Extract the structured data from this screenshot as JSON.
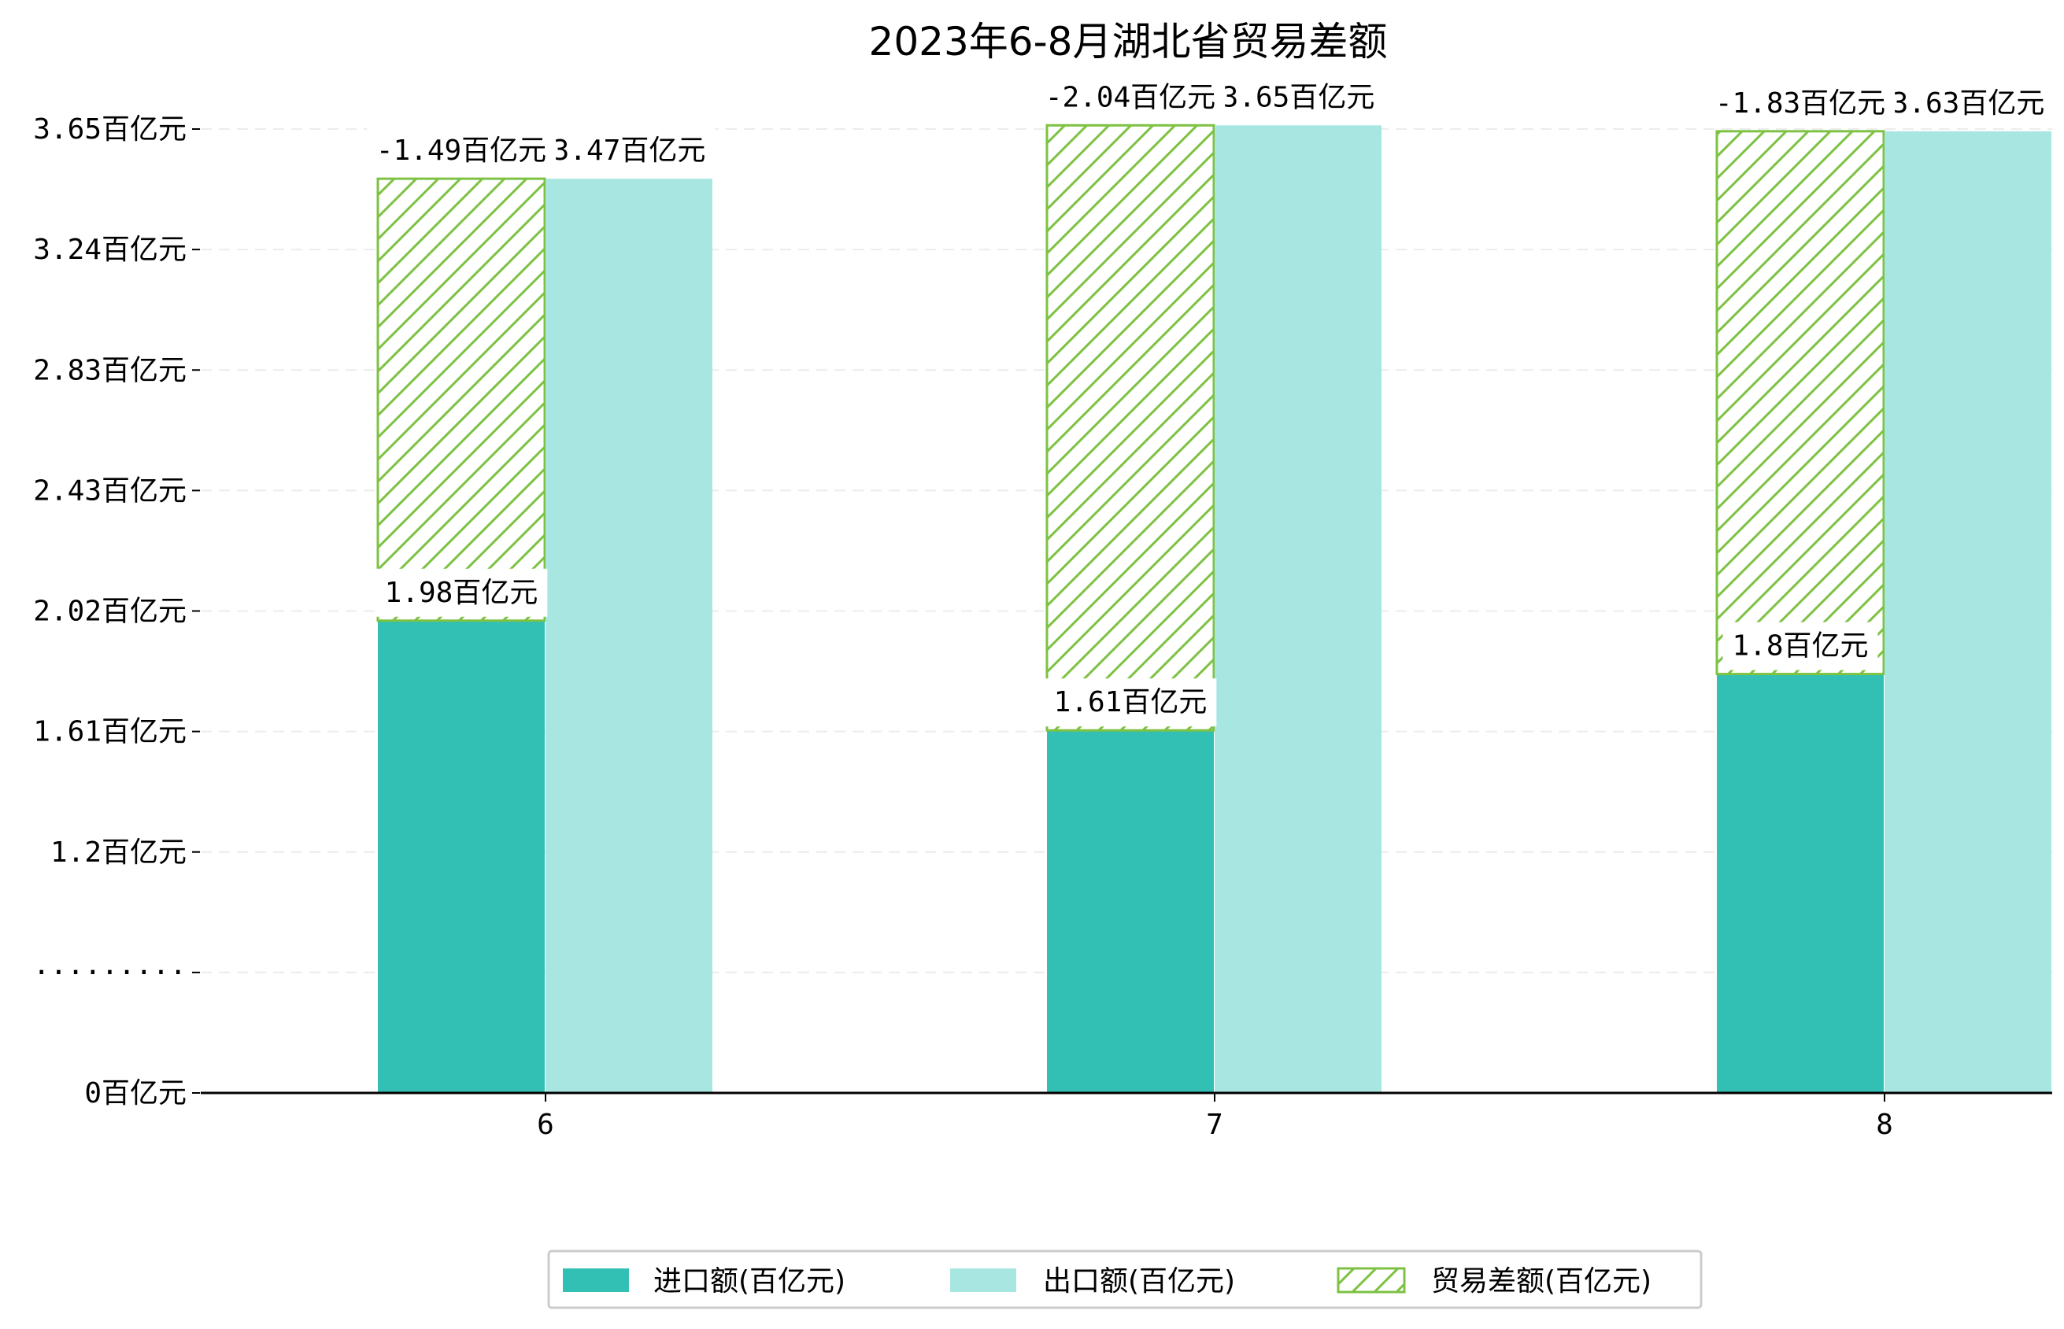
{
  "chart_data": {
    "type": "bar",
    "title": "2023年6-8月湖北省贸易差额",
    "xlabel": "",
    "ylabel": "",
    "categories": [
      "6",
      "7",
      "8"
    ],
    "y_ticks": [
      "0百亿元",
      "·········",
      "1.2百亿元",
      "1.61百亿元",
      "2.02百亿元",
      "2.43百亿元",
      "2.83百亿元",
      "3.24百亿元",
      "3.65百亿元"
    ],
    "y_axis_break": true,
    "grid": "horizontal dashed",
    "legend_position": "bottom-center",
    "series": [
      {
        "name": "进口额(百亿元)",
        "values": [
          1.98,
          1.61,
          1.8
        ],
        "labels": [
          "1.98百亿元",
          "1.61百亿元",
          "1.8百亿元"
        ],
        "color": "#31c0b3",
        "style": "solid"
      },
      {
        "name": "出口额(百亿元)",
        "values": [
          3.47,
          3.65,
          3.63
        ],
        "labels": [
          "47百亿元",
          "65百亿元",
          "63百亿元"
        ],
        "color": "#a8e6e1",
        "style": "solid"
      },
      {
        "name": "贸易差额(百亿元)",
        "values": [
          -1.49,
          -2.04,
          -1.83
        ],
        "labels": [
          "-1.49百亿元",
          "-2.04百亿元",
          "-1.83百亿元"
        ],
        "color": "#7dc242",
        "style": "hatched"
      }
    ],
    "series_label_prefixes": [
      "",
      "3.",
      ""
    ]
  }
}
